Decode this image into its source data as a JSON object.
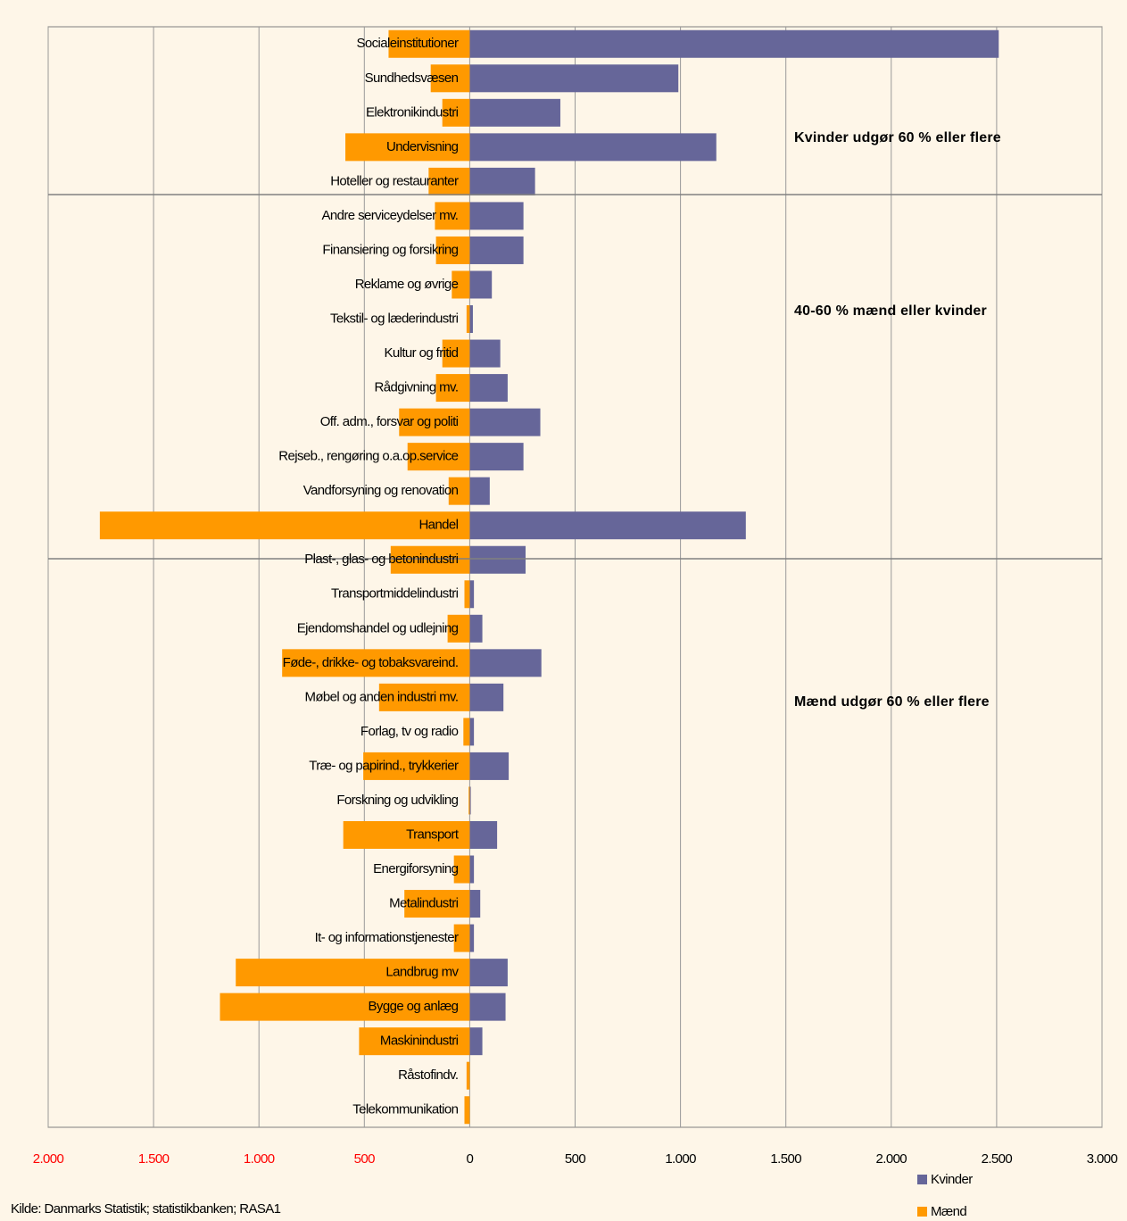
{
  "chart_data": {
    "type": "diverging-bar",
    "categories": [
      "Socialeinstitutioner",
      "Sundhedsvæsen",
      "Elektronikindustri",
      "Undervisning",
      "Hoteller og restauranter",
      "Andre serviceydelser mv.",
      "Finansiering og forsikring",
      "Reklame og øvrige",
      "Tekstil- og læderindustri",
      "Kultur og fritid",
      "Rådgivning mv.",
      "Off. adm., forsvar og politi",
      "Rejseb., rengøring o.a.op.service",
      "Vandforsyning og renovation",
      "Handel",
      "Plast-, glas- og betonindustri",
      "Transportmiddelindustri",
      "Ejendomshandel og udlejning",
      "Føde-, drikke- og tobaksvareind.",
      "Møbel og anden industri mv.",
      "Forlag, tv og radio",
      "Træ- og papirind., trykkerier",
      "Forskning og udvikling",
      "Transport",
      "Energiforsyning",
      "Metalindustri",
      "It- og informationstjenester",
      "Landbrug mv",
      "Bygge og anlæg",
      "Maskinindustri",
      "Råstofindv.",
      "Telekommunikation"
    ],
    "series": [
      {
        "name": "Kvinder",
        "color": "#666699",
        "values": [
          2510,
          990,
          430,
          1170,
          310,
          255,
          255,
          105,
          15,
          145,
          180,
          335,
          255,
          95,
          1310,
          265,
          20,
          60,
          340,
          160,
          20,
          185,
          5,
          130,
          20,
          50,
          20,
          180,
          170,
          60,
          0,
          0
        ]
      },
      {
        "name": "Mænd",
        "color": "#ff9900",
        "values": [
          -385,
          -185,
          -130,
          -590,
          -195,
          -165,
          -160,
          -85,
          -15,
          -130,
          -160,
          -335,
          -295,
          -100,
          -1755,
          -375,
          -25,
          -105,
          -890,
          -430,
          -30,
          -505,
          -5,
          -600,
          -75,
          -310,
          -75,
          -1110,
          -1185,
          -525,
          -15,
          -25
        ]
      }
    ],
    "xlim": [
      -2000,
      3000
    ],
    "xticks": [
      {
        "value": -2000,
        "label": "2.000"
      },
      {
        "value": -1500,
        "label": "1.500"
      },
      {
        "value": -1000,
        "label": "1.000"
      },
      {
        "value": -500,
        "label": "500"
      },
      0,
      500,
      {
        "value": 1000,
        "label": "1.000"
      },
      {
        "value": 1500,
        "label": "1.500"
      },
      {
        "value": 2000,
        "label": "2.000"
      },
      {
        "value": 2500,
        "label": "2.500"
      },
      {
        "value": 3000,
        "label": "3.000"
      }
    ],
    "negative_tick_color": "#ff0000",
    "grid": true,
    "legend": "bottom-right",
    "annotations": [
      "Kvinder udgør 60 % eller flere",
      "40-60 % mænd eller kvinder",
      "Mænd udgør 60 % eller flere"
    ],
    "source": "Kilde: Danmarks Statistik; statistikbanken; RASA1"
  }
}
